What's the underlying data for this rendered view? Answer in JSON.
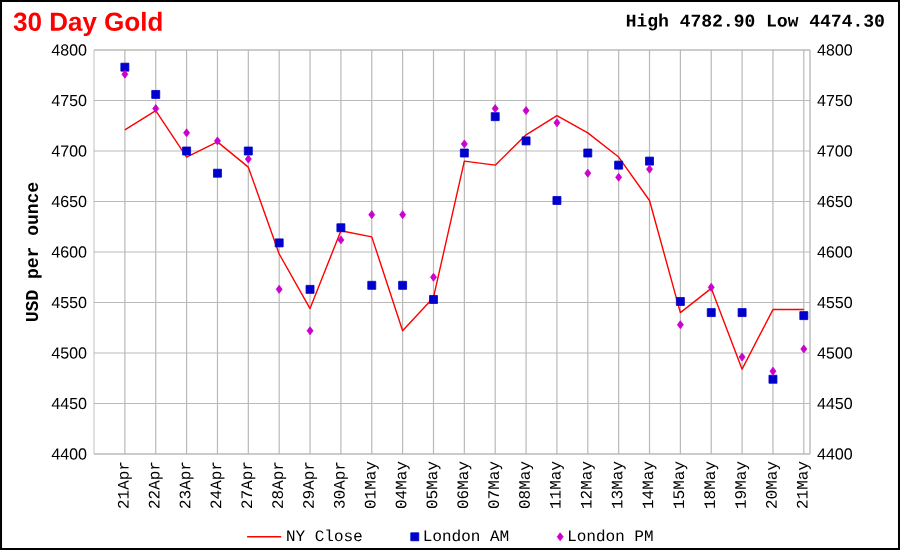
{
  "chart_data": {
    "type": "line",
    "title": "30 Day Gold",
    "subtitle": "High 4782.90 Low 4474.30",
    "ylabel": "USD per ounce",
    "categories": [
      "21Apr",
      "22Apr",
      "23Apr",
      "24Apr",
      "27Apr",
      "28Apr",
      "29Apr",
      "30Apr",
      "01May",
      "04May",
      "05May",
      "06May",
      "07May",
      "08May",
      "11May",
      "12May",
      "13May",
      "14May",
      "15May",
      "18May",
      "19May",
      "20May",
      "21May"
    ],
    "series": [
      {
        "name": "NY Close",
        "type": "line",
        "color": "#ff0000",
        "values": [
          4721,
          4740,
          4694,
          4709,
          4684,
          4598,
          4544,
          4621,
          4615,
          4522,
          4555,
          4690,
          4686,
          4716,
          4735,
          4718,
          4694,
          4651,
          4540,
          4564,
          4484,
          4543,
          4543
        ]
      },
      {
        "name": "London AM",
        "type": "scatter",
        "marker": "square",
        "color": "#0000cc",
        "values": [
          4783,
          4756,
          4700,
          4678,
          4700,
          4609,
          4563,
          4624,
          4567,
          4567,
          4553,
          4698,
          4734,
          4710,
          4651,
          4698,
          4686,
          4690,
          4551,
          4540,
          4540,
          4474,
          4537
        ]
      },
      {
        "name": "London PM",
        "type": "scatter",
        "marker": "diamond",
        "color": "#cc00cc",
        "values": [
          4776,
          4742,
          4718,
          4710,
          4692,
          4563,
          4522,
          4612,
          4637,
          4637,
          4575,
          4707,
          4742,
          4740,
          4728,
          4678,
          4674,
          4682,
          4528,
          4565,
          4496,
          4482,
          4504
        ]
      }
    ],
    "ylim": [
      4400,
      4800
    ],
    "yticks": [
      4400,
      4450,
      4500,
      4550,
      4600,
      4650,
      4700,
      4750,
      4800
    ],
    "y2lim": [
      4400,
      4800
    ],
    "y2ticks": [
      4400,
      4450,
      4500,
      4550,
      4600,
      4650,
      4700,
      4750,
      4800
    ],
    "grid": true,
    "legend": "bottom"
  }
}
